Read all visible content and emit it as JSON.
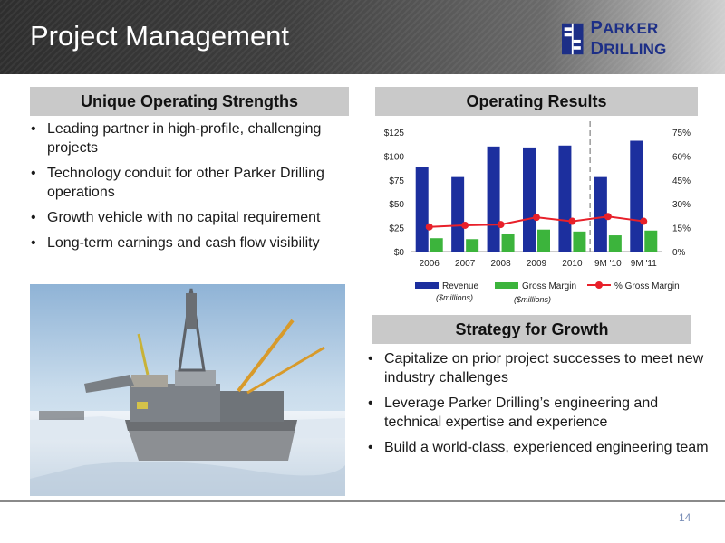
{
  "header": {
    "title": "Project Management",
    "logo_text_first": "P",
    "logo_text_rest": "ARKER ",
    "logo_text_second": "D",
    "logo_text_rest2": "RILLING"
  },
  "sections": {
    "strengths_title": "Unique Operating Strengths",
    "results_title": "Operating Results",
    "strategy_title": "Strategy for Growth"
  },
  "strengths": [
    "Leading partner in high-profile, challenging projects",
    "Technology conduit for other Parker Drilling operations",
    "Growth vehicle with no capital requirement",
    "Long-term earnings and cash flow visibility"
  ],
  "strategy": [
    "Capitalize on prior project successes to meet new industry challenges",
    "Leverage Parker Drilling’s engineering and technical expertise and experience",
    "Build a world-class, experienced engineering team"
  ],
  "footer": {
    "page_number": "14"
  },
  "colors": {
    "revenue": "#1c2f9e",
    "gross_margin": "#3cb43c",
    "pct_margin": "#e8202a",
    "header_dark": "#2e2e2e",
    "section_bg": "#c9c9c9",
    "logo_blue": "#1d2f87"
  },
  "icons": {
    "logo": "parker-drilling-logo-icon",
    "photo": "offshore-drilling-platform-image"
  },
  "chart_data": {
    "type": "bar",
    "categories": [
      "2006",
      "2007",
      "2008",
      "2009",
      "2010",
      "9M '10",
      "9M '11"
    ],
    "series": [
      {
        "name": "Revenue",
        "sublabel": "($millions)",
        "type": "bar",
        "axis": "left",
        "values": [
          89,
          78,
          110,
          109,
          111,
          78,
          116
        ]
      },
      {
        "name": "Gross Margin",
        "sublabel": "($millions)",
        "type": "bar",
        "axis": "left",
        "values": [
          14,
          13,
          18,
          23,
          21,
          17,
          22
        ]
      },
      {
        "name": "% Gross Margin",
        "type": "line",
        "axis": "right",
        "values": [
          15.5,
          16.5,
          17,
          21.5,
          19,
          22,
          19
        ]
      }
    ],
    "y_left": {
      "ticks": [
        "$0",
        "$25",
        "$50",
        "$75",
        "$100",
        "$125"
      ],
      "range": [
        0,
        125
      ]
    },
    "y_right": {
      "ticks": [
        "0%",
        "15%",
        "30%",
        "45%",
        "60%",
        "75%"
      ],
      "range": [
        0,
        75
      ]
    },
    "divider_between": [
      "2010",
      "9M '10"
    ],
    "legend_position": "bottom",
    "grid": false
  }
}
